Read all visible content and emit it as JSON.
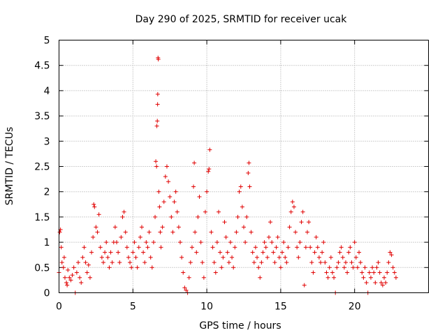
{
  "chart_data": {
    "type": "scatter",
    "title": "Day 290 of 2025, SRMTID for receiver ucak",
    "xlabel": "GPS time / hours",
    "ylabel": "SRMTID / TECUs",
    "xlim": [
      0,
      25
    ],
    "ylim": [
      0,
      5
    ],
    "xticks": [
      0,
      5,
      10,
      15,
      20
    ],
    "xtick_labels": [
      "0",
      "5",
      "10",
      "15",
      "20"
    ],
    "yticks": [
      0,
      0.5,
      1,
      1.5,
      2,
      2.5,
      3,
      3.5,
      4,
      4.5,
      5
    ],
    "ytick_labels": [
      "0",
      "0.5",
      "1",
      "1.5",
      "2",
      "2.5",
      "3",
      "3.5",
      "4",
      "4.5",
      "5"
    ],
    "grid": true,
    "marker": "+",
    "color": "#e00000",
    "series": [
      {
        "name": "SRMTID",
        "points": [
          [
            0.0,
            0.4
          ],
          [
            0.05,
            1.2
          ],
          [
            0.1,
            1.25
          ],
          [
            0.15,
            0.9
          ],
          [
            0.2,
            0.6
          ],
          [
            0.3,
            0.5
          ],
          [
            0.35,
            0.7
          ],
          [
            0.4,
            0.3
          ],
          [
            0.5,
            0.2
          ],
          [
            0.55,
            0.15
          ],
          [
            0.6,
            0.45
          ],
          [
            0.7,
            0.3
          ],
          [
            0.8,
            0.25
          ],
          [
            0.9,
            0.35
          ],
          [
            1.0,
            0.5
          ],
          [
            1.1,
            0.0
          ],
          [
            1.2,
            0.4
          ],
          [
            1.3,
            0.6
          ],
          [
            1.4,
            0.3
          ],
          [
            1.5,
            0.2
          ],
          [
            1.6,
            0.7
          ],
          [
            1.7,
            0.9
          ],
          [
            1.8,
            0.6
          ],
          [
            1.9,
            0.4
          ],
          [
            2.0,
            0.55
          ],
          [
            2.1,
            0.3
          ],
          [
            2.2,
            0.8
          ],
          [
            2.3,
            1.1
          ],
          [
            2.35,
            1.75
          ],
          [
            2.4,
            1.7
          ],
          [
            2.5,
            1.3
          ],
          [
            2.6,
            1.2
          ],
          [
            2.7,
            1.55
          ],
          [
            2.8,
            0.9
          ],
          [
            2.9,
            0.7
          ],
          [
            3.0,
            0.6
          ],
          [
            3.1,
            0.8
          ],
          [
            3.2,
            1.0
          ],
          [
            3.3,
            0.7
          ],
          [
            3.4,
            0.5
          ],
          [
            3.5,
            0.8
          ],
          [
            3.6,
            0.6
          ],
          [
            3.7,
            1.0
          ],
          [
            3.8,
            1.3
          ],
          [
            3.9,
            1.0
          ],
          [
            4.0,
            0.8
          ],
          [
            4.1,
            0.6
          ],
          [
            4.2,
            1.1
          ],
          [
            4.3,
            1.5
          ],
          [
            4.4,
            1.6
          ],
          [
            4.5,
            1.2
          ],
          [
            4.6,
            0.9
          ],
          [
            4.7,
            0.7
          ],
          [
            4.8,
            0.6
          ],
          [
            4.9,
            0.5
          ],
          [
            5.0,
            0.8
          ],
          [
            5.1,
            1.0
          ],
          [
            5.2,
            0.7
          ],
          [
            5.3,
            0.5
          ],
          [
            5.4,
            0.9
          ],
          [
            5.5,
            1.1
          ],
          [
            5.6,
            1.3
          ],
          [
            5.7,
            0.8
          ],
          [
            5.8,
            0.6
          ],
          [
            5.9,
            1.0
          ],
          [
            6.0,
            0.9
          ],
          [
            6.1,
            1.2
          ],
          [
            6.2,
            0.7
          ],
          [
            6.3,
            0.5
          ],
          [
            6.4,
            1.0
          ],
          [
            6.5,
            1.5
          ],
          [
            6.55,
            2.6
          ],
          [
            6.6,
            2.5
          ],
          [
            6.62,
            3.3
          ],
          [
            6.65,
            3.4
          ],
          [
            6.67,
            3.73
          ],
          [
            6.68,
            3.93
          ],
          [
            6.7,
            4.65
          ],
          [
            6.72,
            4.62
          ],
          [
            6.75,
            2.0
          ],
          [
            6.8,
            1.7
          ],
          [
            6.85,
            1.2
          ],
          [
            6.9,
            0.9
          ],
          [
            7.0,
            1.3
          ],
          [
            7.1,
            1.8
          ],
          [
            7.2,
            2.3
          ],
          [
            7.3,
            2.5
          ],
          [
            7.4,
            2.2
          ],
          [
            7.5,
            1.9
          ],
          [
            7.6,
            1.5
          ],
          [
            7.7,
            1.2
          ],
          [
            7.8,
            1.8
          ],
          [
            7.9,
            2.0
          ],
          [
            8.0,
            1.6
          ],
          [
            8.1,
            1.3
          ],
          [
            8.2,
            1.0
          ],
          [
            8.3,
            0.7
          ],
          [
            8.4,
            0.4
          ],
          [
            8.5,
            0.1
          ],
          [
            8.6,
            0.05
          ],
          [
            8.7,
            0.0
          ],
          [
            8.8,
            0.3
          ],
          [
            8.9,
            0.6
          ],
          [
            9.0,
            0.9
          ],
          [
            9.1,
            2.1
          ],
          [
            9.15,
            2.57
          ],
          [
            9.2,
            1.2
          ],
          [
            9.3,
            0.8
          ],
          [
            9.4,
            1.5
          ],
          [
            9.5,
            1.9
          ],
          [
            9.6,
            1.0
          ],
          [
            9.7,
            0.6
          ],
          [
            9.8,
            0.3
          ],
          [
            9.9,
            1.6
          ],
          [
            10.0,
            2.0
          ],
          [
            10.1,
            2.4
          ],
          [
            10.15,
            2.45
          ],
          [
            10.2,
            2.83
          ],
          [
            10.3,
            1.2
          ],
          [
            10.4,
            0.9
          ],
          [
            10.5,
            0.6
          ],
          [
            10.6,
            0.4
          ],
          [
            10.7,
            1.0
          ],
          [
            10.8,
            1.6
          ],
          [
            10.9,
            0.8
          ],
          [
            11.0,
            0.5
          ],
          [
            11.1,
            0.7
          ],
          [
            11.2,
            1.4
          ],
          [
            11.3,
            1.1
          ],
          [
            11.4,
            0.8
          ],
          [
            11.5,
            0.6
          ],
          [
            11.6,
            1.0
          ],
          [
            11.7,
            0.7
          ],
          [
            11.8,
            0.5
          ],
          [
            11.9,
            0.9
          ],
          [
            12.0,
            1.2
          ],
          [
            12.1,
            1.5
          ],
          [
            12.2,
            2.0
          ],
          [
            12.3,
            2.1
          ],
          [
            12.4,
            1.7
          ],
          [
            12.5,
            1.3
          ],
          [
            12.6,
            1.0
          ],
          [
            12.7,
            1.5
          ],
          [
            12.8,
            2.37
          ],
          [
            12.85,
            2.57
          ],
          [
            12.9,
            2.1
          ],
          [
            13.0,
            1.2
          ],
          [
            13.1,
            0.8
          ],
          [
            13.2,
            0.6
          ],
          [
            13.3,
            0.9
          ],
          [
            13.4,
            0.7
          ],
          [
            13.5,
            0.5
          ],
          [
            13.6,
            0.3
          ],
          [
            13.7,
            0.6
          ],
          [
            13.8,
            0.8
          ],
          [
            13.9,
            1.0
          ],
          [
            14.0,
            0.9
          ],
          [
            14.1,
            0.7
          ],
          [
            14.2,
            1.1
          ],
          [
            14.3,
            1.4
          ],
          [
            14.4,
            1.0
          ],
          [
            14.5,
            0.8
          ],
          [
            14.6,
            0.6
          ],
          [
            14.7,
            0.9
          ],
          [
            14.8,
            1.1
          ],
          [
            14.9,
            0.7
          ],
          [
            15.0,
            0.5
          ],
          [
            15.1,
            0.8
          ],
          [
            15.2,
            1.0
          ],
          [
            15.3,
            0.7
          ],
          [
            15.4,
            0.6
          ],
          [
            15.5,
            0.9
          ],
          [
            15.6,
            1.3
          ],
          [
            15.7,
            1.6
          ],
          [
            15.8,
            1.8
          ],
          [
            15.9,
            1.7
          ],
          [
            16.0,
            1.2
          ],
          [
            16.1,
            0.9
          ],
          [
            16.2,
            0.7
          ],
          [
            16.3,
            1.0
          ],
          [
            16.4,
            1.4
          ],
          [
            16.5,
            1.6
          ],
          [
            16.6,
            0.15
          ],
          [
            16.7,
            0.9
          ],
          [
            16.8,
            1.2
          ],
          [
            16.9,
            1.4
          ],
          [
            17.0,
            0.9
          ],
          [
            17.1,
            0.6
          ],
          [
            17.2,
            0.4
          ],
          [
            17.3,
            0.8
          ],
          [
            17.4,
            1.1
          ],
          [
            17.5,
            0.9
          ],
          [
            17.6,
            0.7
          ],
          [
            17.7,
            0.6
          ],
          [
            17.8,
            0.8
          ],
          [
            17.9,
            1.0
          ],
          [
            18.0,
            0.6
          ],
          [
            18.1,
            0.4
          ],
          [
            18.2,
            0.3
          ],
          [
            18.3,
            0.5
          ],
          [
            18.4,
            0.7
          ],
          [
            18.5,
            0.4
          ],
          [
            18.6,
            0.3
          ],
          [
            18.7,
            0.0
          ],
          [
            18.8,
            0.5
          ],
          [
            18.9,
            0.6
          ],
          [
            19.0,
            0.8
          ],
          [
            19.1,
            0.9
          ],
          [
            19.2,
            0.7
          ],
          [
            19.3,
            0.5
          ],
          [
            19.4,
            0.6
          ],
          [
            19.5,
            0.4
          ],
          [
            19.6,
            0.8
          ],
          [
            19.7,
            0.9
          ],
          [
            19.8,
            0.6
          ],
          [
            19.9,
            0.5
          ],
          [
            20.0,
            1.0
          ],
          [
            20.1,
            0.7
          ],
          [
            20.2,
            0.5
          ],
          [
            20.3,
            0.8
          ],
          [
            20.4,
            0.6
          ],
          [
            20.5,
            0.4
          ],
          [
            20.6,
            0.3
          ],
          [
            20.7,
            0.5
          ],
          [
            20.8,
            0.2
          ],
          [
            20.9,
            0.0
          ],
          [
            21.0,
            0.4
          ],
          [
            21.1,
            0.3
          ],
          [
            21.2,
            0.5
          ],
          [
            21.3,
            0.4
          ],
          [
            21.4,
            0.2
          ],
          [
            21.5,
            0.5
          ],
          [
            21.6,
            0.6
          ],
          [
            21.7,
            0.4
          ],
          [
            21.8,
            0.2
          ],
          [
            21.9,
            0.15
          ],
          [
            22.0,
            0.3
          ],
          [
            22.1,
            0.2
          ],
          [
            22.2,
            0.4
          ],
          [
            22.3,
            0.6
          ],
          [
            22.4,
            0.8
          ],
          [
            22.5,
            0.75
          ],
          [
            22.6,
            0.5
          ],
          [
            22.7,
            0.4
          ],
          [
            22.8,
            0.3
          ]
        ]
      }
    ]
  }
}
